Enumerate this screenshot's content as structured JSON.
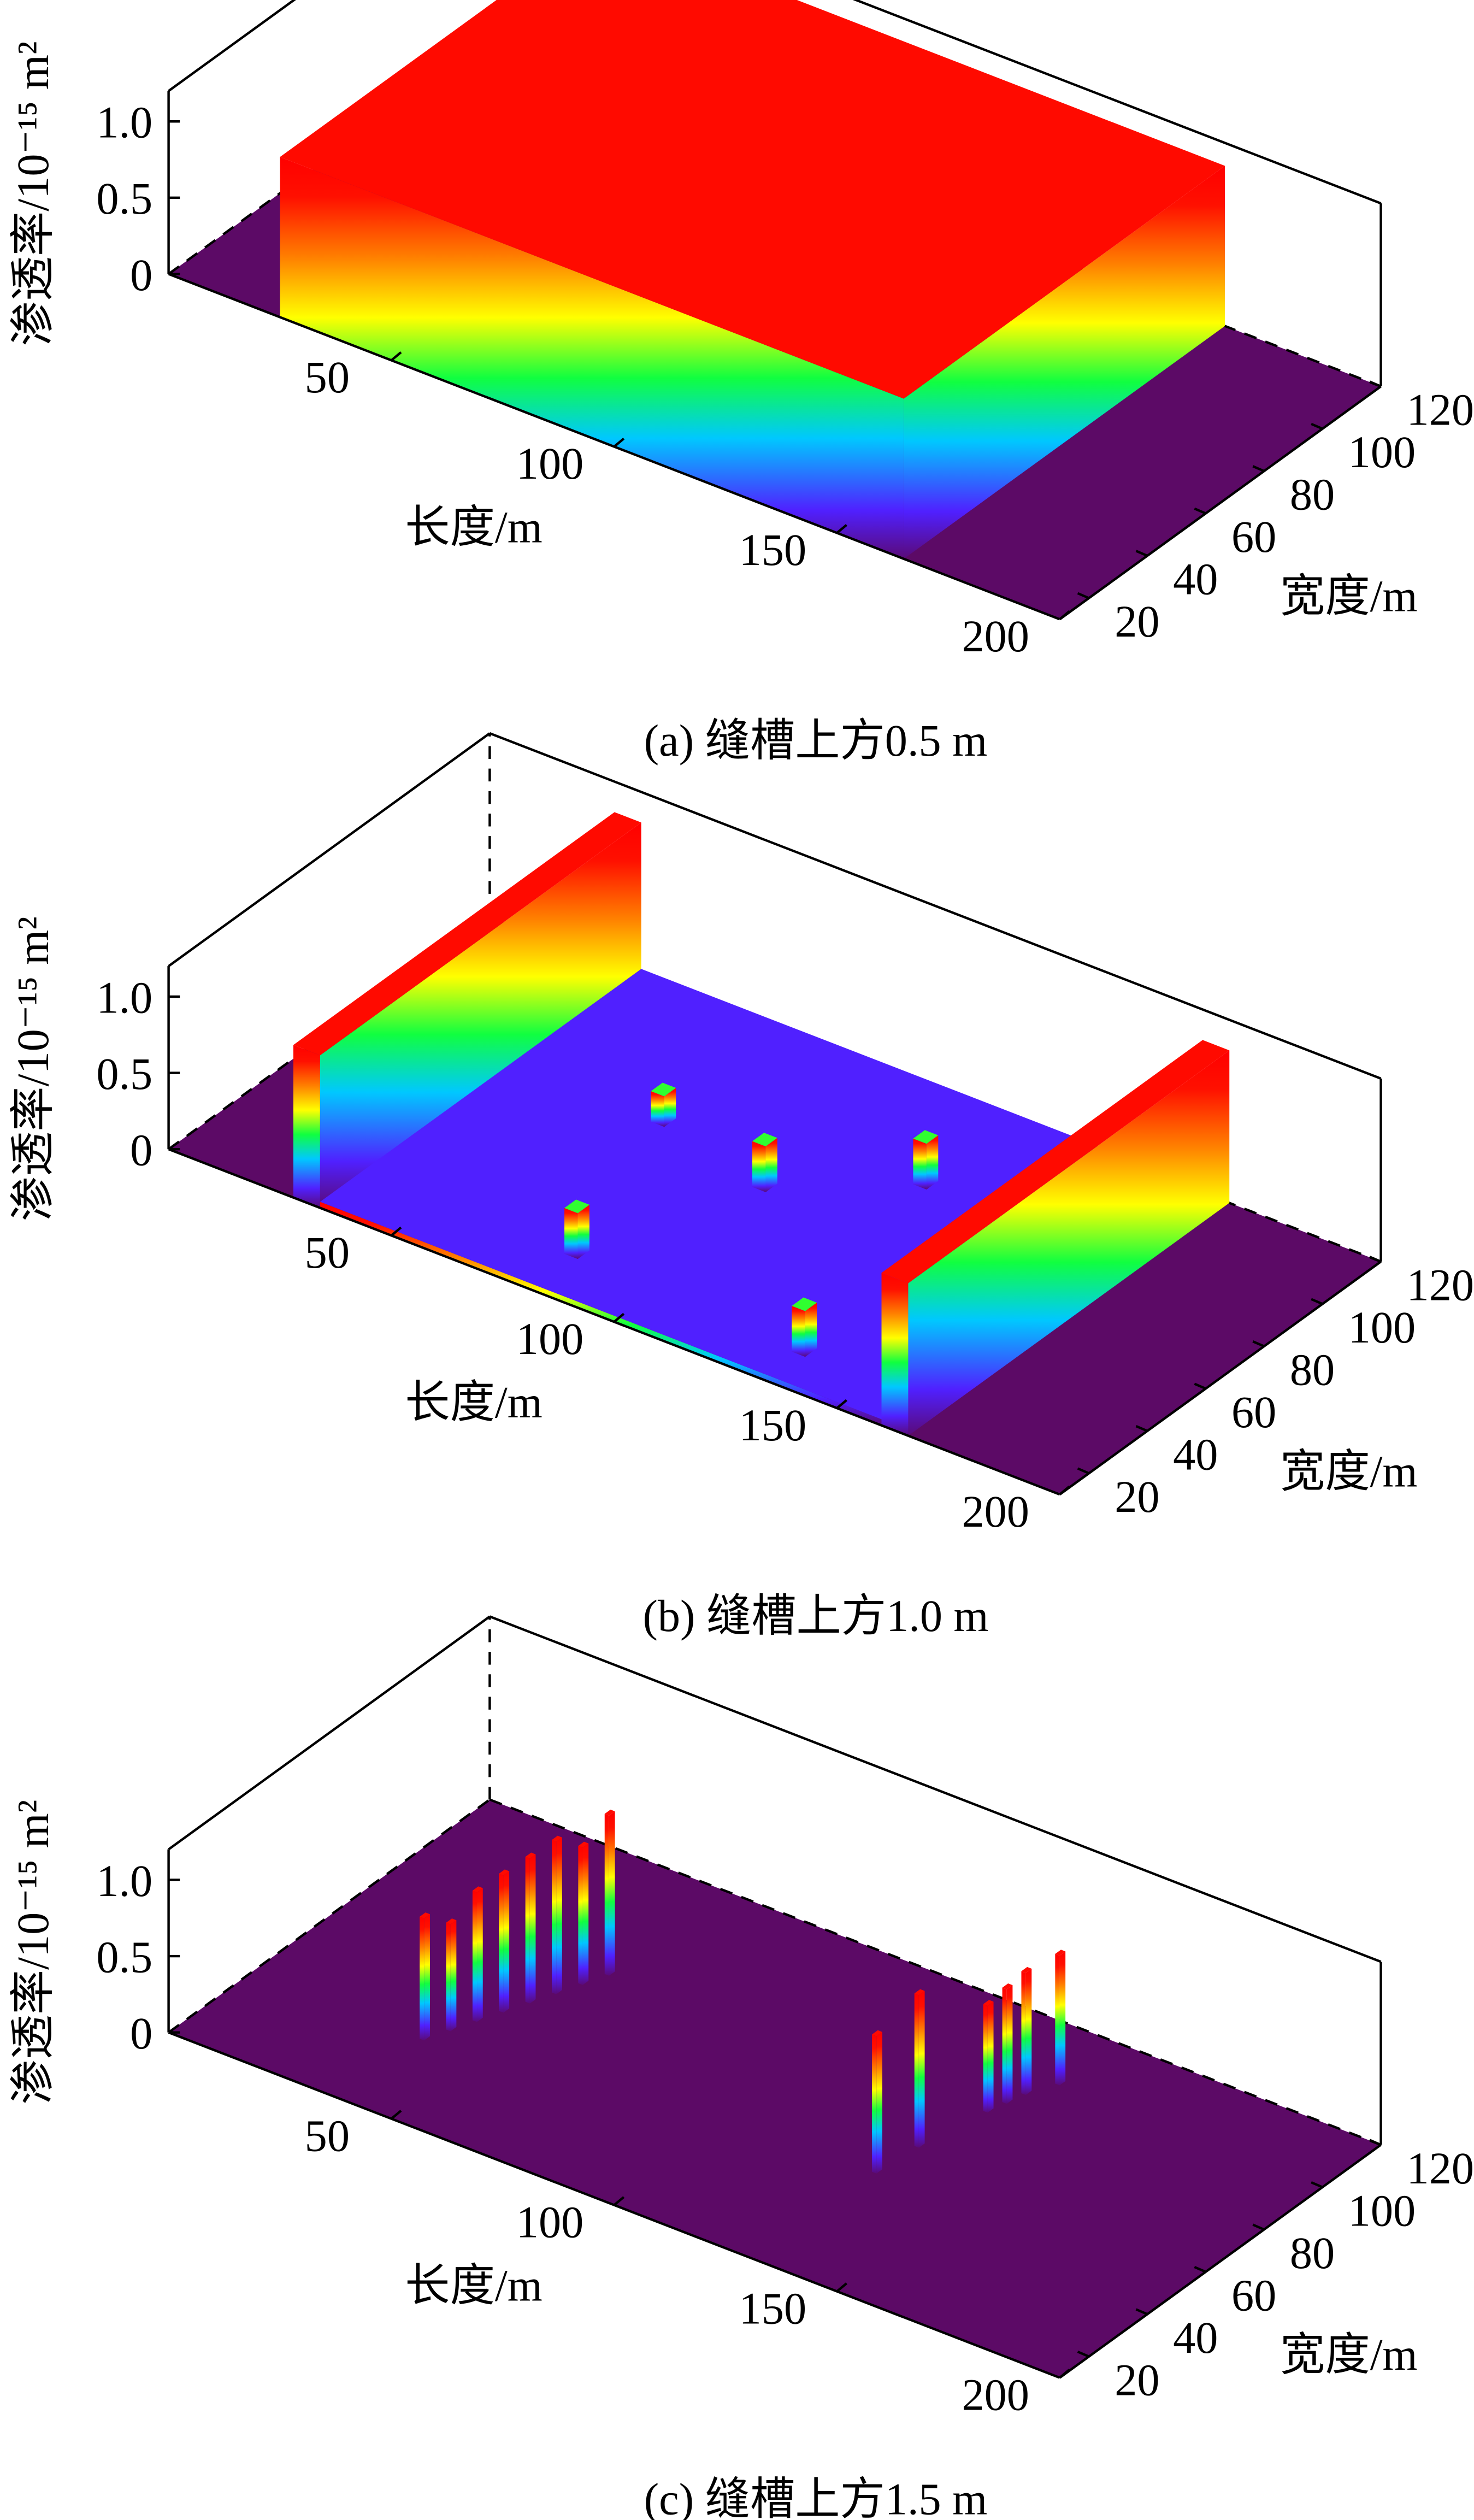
{
  "chart_data": [
    {
      "type": "surface3d",
      "caption": "(a) 缝槽上方0.5 m",
      "xlabel": "长度/m",
      "ylabel": "宽度/m",
      "zlabel": "渗透率/10⁻¹⁵ m²",
      "xlim": [
        0,
        200
      ],
      "ylim": [
        10,
        120
      ],
      "zlim": [
        0,
        1.2
      ],
      "xticks": [
        50,
        100,
        150,
        200
      ],
      "yticks": [
        20,
        40,
        60,
        80,
        100,
        120
      ],
      "zticks": [
        0,
        0.5,
        {
          "value": 1,
          "label": "1.0"
        }
      ],
      "blocks": [
        {
          "x": [
            25,
            165
          ],
          "y": [
            10,
            120
          ],
          "z": 1.05
        }
      ]
    },
    {
      "type": "surface3d",
      "caption": "(b) 缝槽上方1.0 m",
      "xlabel": "长度/m",
      "ylabel": "宽度/m",
      "zlabel": "渗透率/10⁻¹⁵ m²",
      "xlim": [
        0,
        200
      ],
      "ylim": [
        10,
        120
      ],
      "zlim": [
        0,
        1.2
      ],
      "xticks": [
        50,
        100,
        150,
        200
      ],
      "yticks": [
        20,
        40,
        60,
        80,
        100,
        120
      ],
      "zticks": [
        0,
        0.5,
        {
          "value": 1,
          "label": "1.0"
        }
      ],
      "blocks": [
        {
          "x": [
            28,
            34
          ],
          "y": [
            10,
            120
          ],
          "z": 1.0
        },
        {
          "x": [
            34,
            160
          ],
          "y": [
            10,
            120
          ],
          "z": 0.04
        },
        {
          "x": [
            116,
            119
          ],
          "y": [
            88,
            92
          ],
          "z": 0.3
        },
        {
          "x": [
            65,
            68
          ],
          "y": [
            76,
            80
          ],
          "z": 0.2
        },
        {
          "x": [
            93,
            96
          ],
          "y": [
            68,
            72
          ],
          "z": 0.3
        },
        {
          "x": [
            79,
            82
          ],
          "y": [
            25,
            29
          ],
          "z": 0.3
        },
        {
          "x": [
            132,
            135
          ],
          "y": [
            22,
            26
          ],
          "z": 0.3
        },
        {
          "x": [
            160,
            166
          ],
          "y": [
            10,
            120
          ],
          "z": 1.0
        }
      ]
    },
    {
      "type": "surface3d",
      "caption": "(c) 缝槽上方1.5 m",
      "xlabel": "长度/m",
      "ylabel": "宽度/m",
      "zlabel": "渗透率/10⁻¹⁵ m²",
      "xlim": [
        0,
        200
      ],
      "ylim": [
        10,
        120
      ],
      "zlim": [
        0,
        1.2
      ],
      "xticks": [
        50,
        100,
        150,
        200
      ],
      "yticks": [
        20,
        40,
        60,
        80,
        100,
        120
      ],
      "zticks": [
        0,
        0.5,
        {
          "value": 1,
          "label": "1.0"
        }
      ],
      "blocks": [
        {
          "x": [
            52,
            53
          ],
          "y": [
            80,
            82
          ],
          "z": 1.05
        },
        {
          "x": [
            50,
            51
          ],
          "y": [
            74,
            76
          ],
          "z": 0.9
        },
        {
          "x": [
            48,
            49
          ],
          "y": [
            68,
            70
          ],
          "z": 1.0
        },
        {
          "x": [
            46,
            47
          ],
          "y": [
            62,
            64
          ],
          "z": 0.95
        },
        {
          "x": [
            44,
            45
          ],
          "y": [
            56,
            58
          ],
          "z": 0.9
        },
        {
          "x": [
            42,
            43
          ],
          "y": [
            50,
            52
          ],
          "z": 0.85
        },
        {
          "x": [
            40,
            41
          ],
          "y": [
            44,
            46
          ],
          "z": 0.7
        },
        {
          "x": [
            38,
            39
          ],
          "y": [
            38,
            40
          ],
          "z": 0.8
        },
        {
          "x": [
            140,
            141
          ],
          "y": [
            100,
            102
          ],
          "z": 0.85
        },
        {
          "x": [
            137,
            138
          ],
          "y": [
            93,
            95
          ],
          "z": 0.8
        },
        {
          "x": [
            136,
            137
          ],
          "y": [
            88,
            90
          ],
          "z": 0.75
        },
        {
          "x": [
            135,
            136
          ],
          "y": [
            83,
            85
          ],
          "z": 0.7
        },
        {
          "x": [
            132,
            133
          ],
          "y": [
            64,
            66
          ],
          "z": 1.0
        },
        {
          "x": [
            131,
            132
          ],
          "y": [
            51,
            53
          ],
          "z": 0.9
        }
      ]
    }
  ]
}
